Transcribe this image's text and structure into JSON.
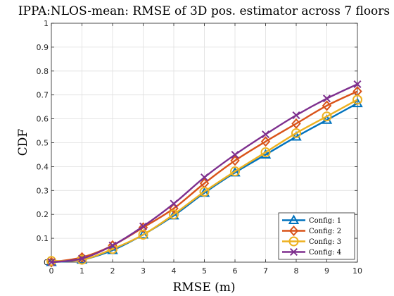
{
  "chart_data": {
    "type": "line",
    "title": "IPPA:NLOS-mean: RMSE of 3D pos. estimator across 7 floors",
    "xlabel": "RMSE (m)",
    "ylabel": "CDF",
    "xlim": [
      0,
      10
    ],
    "ylim": [
      0,
      1
    ],
    "xticks": [
      "0",
      "1",
      "2",
      "3",
      "4",
      "5",
      "6",
      "7",
      "8",
      "9",
      "10"
    ],
    "yticks": [
      "0",
      "0.1",
      "0.2",
      "0.3",
      "0.4",
      "0.5",
      "0.6",
      "0.7",
      "0.8",
      "0.9",
      "1"
    ],
    "grid": true,
    "legend_position": "bottom-right",
    "x": [
      0,
      1,
      2,
      3,
      4,
      5,
      6,
      7,
      8,
      9,
      10
    ],
    "series": [
      {
        "name": "Config: 1",
        "color": "#0072BD",
        "marker": "triangle",
        "values": [
          0.0,
          0.01,
          0.05,
          0.115,
          0.195,
          0.29,
          0.375,
          0.45,
          0.525,
          0.595,
          0.665
        ]
      },
      {
        "name": "Config: 2",
        "color": "#D95319",
        "marker": "diamond",
        "values": [
          0.0,
          0.02,
          0.07,
          0.145,
          0.225,
          0.33,
          0.425,
          0.505,
          0.58,
          0.655,
          0.715
        ]
      },
      {
        "name": "Config: 3",
        "color": "#EDB120",
        "marker": "circle",
        "values": [
          0.005,
          0.01,
          0.055,
          0.115,
          0.2,
          0.295,
          0.38,
          0.46,
          0.54,
          0.61,
          0.68
        ]
      },
      {
        "name": "Config: 4",
        "color": "#7E2F8E",
        "marker": "cross",
        "values": [
          0.0,
          0.015,
          0.07,
          0.15,
          0.245,
          0.355,
          0.45,
          0.535,
          0.615,
          0.685,
          0.745
        ]
      }
    ]
  }
}
